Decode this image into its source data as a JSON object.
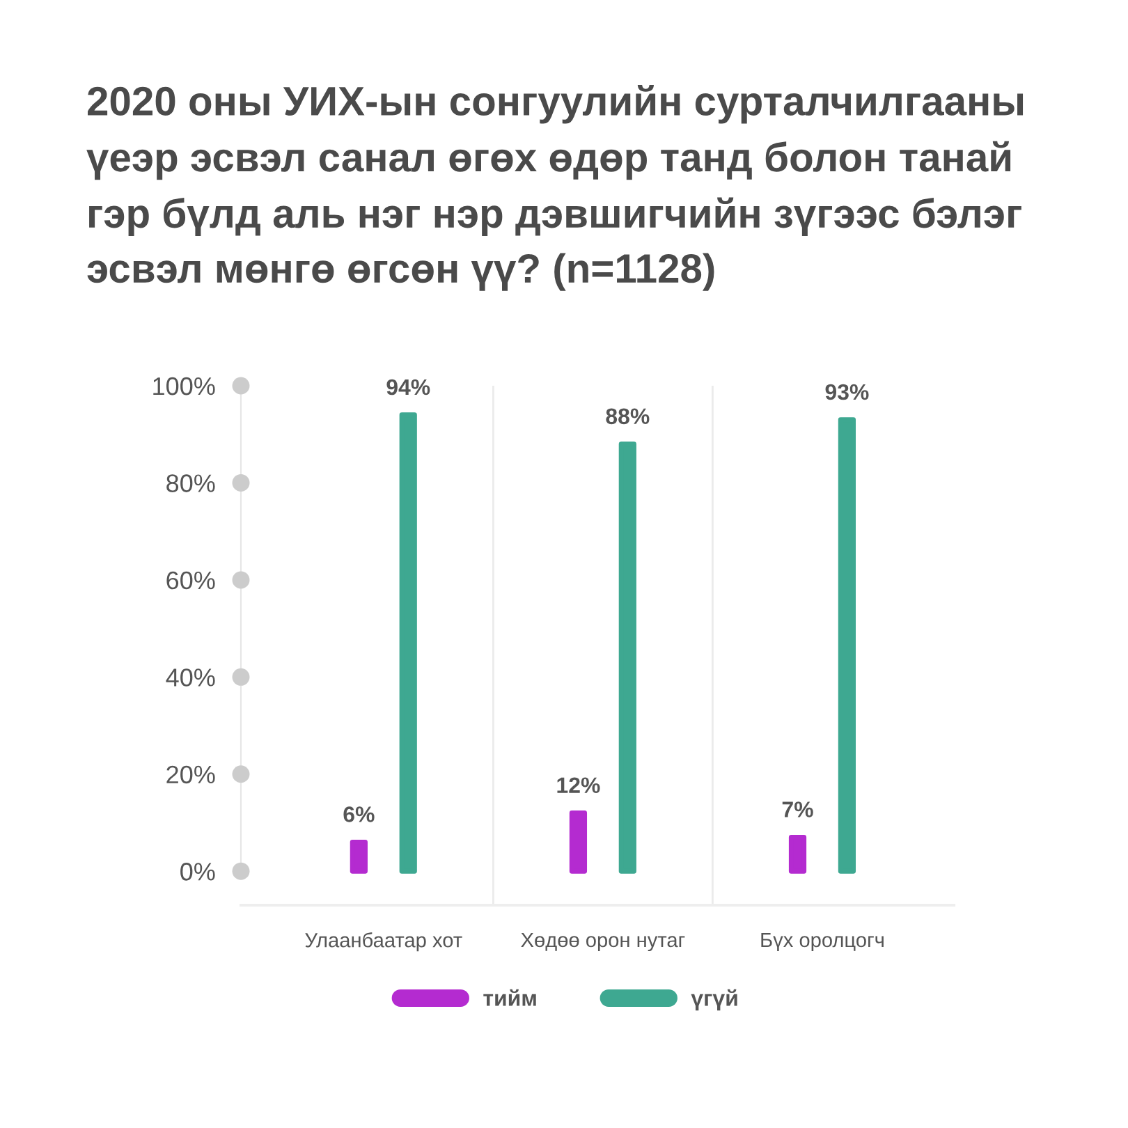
{
  "chart_data": {
    "type": "bar",
    "title": "2020 оны УИХ-ын сонгуулийн сурталчилгааны\nүеэр эсвэл санал өгөх өдөр танд болон танай\nгэр бүлд аль нэг нэр дэвшигчийн зүгээс бэлэг\nэсвэл мөнгө өгсөн үү? (n=1128)",
    "categories": [
      "Улаанбаатар хот",
      "Хөдөө орон нутаг",
      "Бүх оролцогч"
    ],
    "series": [
      {
        "name": "тийм",
        "color": "#b42bd0",
        "values": [
          6,
          12,
          7
        ],
        "value_labels": [
          "6%",
          "12%",
          "7%"
        ]
      },
      {
        "name": "үгүй",
        "color": "#3ea891",
        "values": [
          94,
          88,
          93
        ],
        "value_labels": [
          "94%",
          "88%",
          "93%"
        ]
      }
    ],
    "ylim": [
      -7,
      100
    ],
    "yticks": [
      {
        "value": 0,
        "label": "0%"
      },
      {
        "value": 20,
        "label": "20%"
      },
      {
        "value": 40,
        "label": "40%"
      },
      {
        "value": 60,
        "label": "60%"
      },
      {
        "value": 80,
        "label": "80%"
      },
      {
        "value": 100,
        "label": "100%"
      }
    ],
    "grid": "x",
    "legend": "bottom"
  }
}
